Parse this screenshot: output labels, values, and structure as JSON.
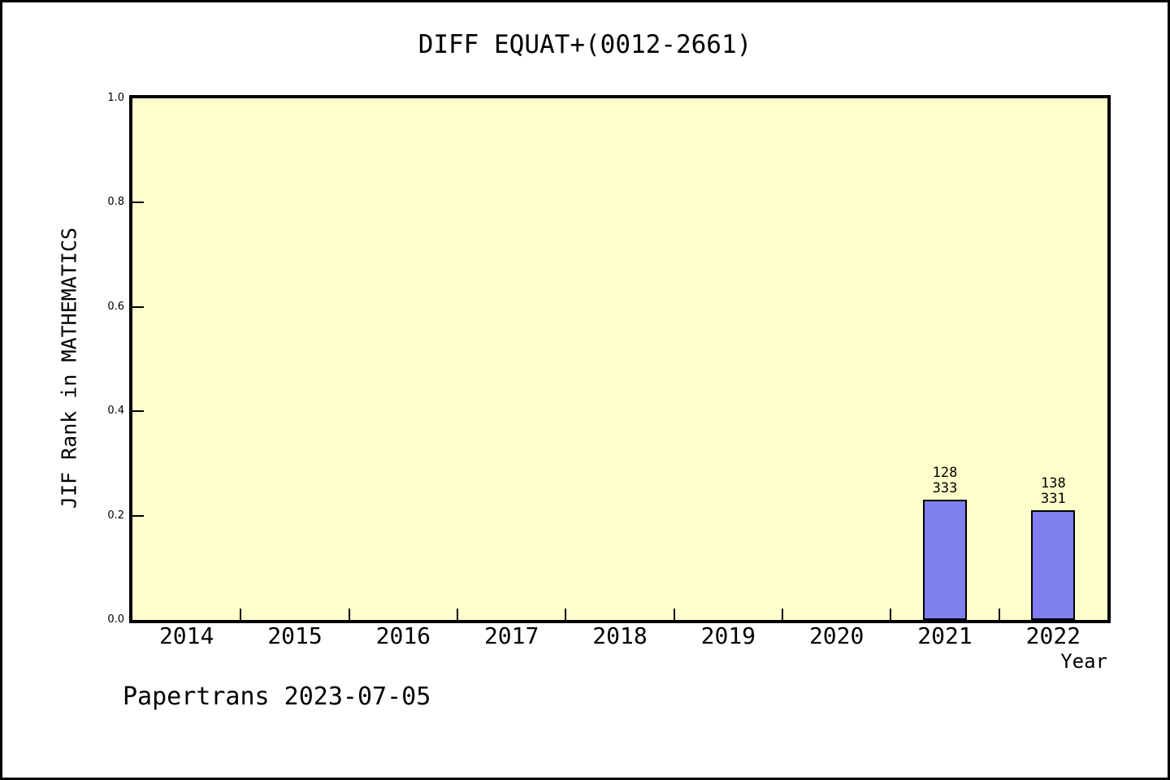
{
  "footer": {
    "text": "Papertrans 2023-07-05"
  },
  "chart_data": {
    "type": "bar",
    "title": "DIFF EQUAT+(0012-2661)",
    "xlabel": "Year",
    "ylabel": "JIF Rank in MATHEMATICS",
    "ylim": [
      0.0,
      1.0
    ],
    "ytick_labels": [
      "0.0",
      "0.2",
      "0.4",
      "0.6",
      "0.8",
      "1.0"
    ],
    "categories": [
      "2014",
      "2015",
      "2016",
      "2017",
      "2018",
      "2019",
      "2020",
      "2021",
      "2022"
    ],
    "series": [
      {
        "values": [
          null,
          null,
          null,
          null,
          null,
          null,
          null,
          0.23,
          0.21
        ]
      }
    ],
    "bar_annotations": [
      {
        "category": "2021",
        "rank": "128",
        "total": "333"
      },
      {
        "category": "2022",
        "rank": "138",
        "total": "331"
      }
    ],
    "grid": false,
    "legend": "none",
    "colors": {
      "bar_fill": "#8080f0",
      "bar_border": "#000000",
      "plot_background": "#ffffcc",
      "axis": "#000000",
      "text": "#000000",
      "page_background": "#ffffff"
    }
  }
}
